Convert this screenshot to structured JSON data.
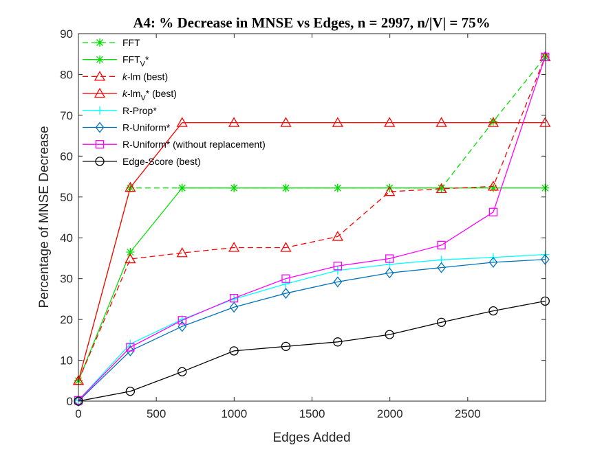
{
  "chart_data": {
    "type": "line",
    "title": "A4: % Decrease in MNSE vs Edges, n = 2997, n/|V| = 75%",
    "xlabel": "Edges Added",
    "ylabel": "Percentage of MNSE Decrease",
    "xlim": [
      0,
      3000
    ],
    "ylim": [
      0,
      90
    ],
    "xticks": [
      0,
      500,
      1000,
      1500,
      2000,
      2500
    ],
    "yticks": [
      0,
      10,
      20,
      30,
      40,
      50,
      60,
      70,
      80,
      90
    ],
    "grid": false,
    "legend_position": "top-left",
    "x": [
      0,
      333,
      666,
      999,
      1332,
      1665,
      1998,
      2331,
      2664,
      2997
    ],
    "series": [
      {
        "name": "FFT",
        "legend": {
          "main": "FFT",
          "sub": "",
          "tail": ""
        },
        "color": "#00e000",
        "dash": "dashed",
        "marker": "asterisk",
        "values": [
          5,
          52.2,
          52.2,
          52.2,
          52.2,
          52.2,
          52.2,
          52.2,
          68.5,
          84.3
        ]
      },
      {
        "name": "FFT_V*",
        "legend": {
          "main": "FFT",
          "sub": "V",
          "tail": "*"
        },
        "color": "#00e000",
        "dash": "solid",
        "marker": "asterisk",
        "values": [
          5,
          36.5,
          52.2,
          52.2,
          52.2,
          52.2,
          52.2,
          52.2,
          52.2,
          52.2
        ]
      },
      {
        "name": "k-lm (best)",
        "legend": {
          "italic": "k",
          "main": "-lm",
          "sub": "",
          "tail": " (best)"
        },
        "color": "#ff0000",
        "dash": "dashed",
        "marker": "triangle",
        "values": [
          5,
          34.8,
          36.3,
          37.6,
          37.6,
          40.3,
          51.3,
          52.0,
          52.6,
          84.3
        ]
      },
      {
        "name": "k-lm_V* (best)",
        "legend": {
          "italic": "k",
          "main": "-lm",
          "sub": "V",
          "tail": "* (best)"
        },
        "color": "#ff0000",
        "dash": "solid",
        "marker": "triangle",
        "values": [
          5,
          52.3,
          68.2,
          68.2,
          68.2,
          68.2,
          68.2,
          68.2,
          68.2,
          68.2
        ]
      },
      {
        "name": "R-Prop*",
        "legend": {
          "main": "R-Prop*",
          "sub": "",
          "tail": ""
        },
        "color": "#00ffff",
        "dash": "solid",
        "marker": "plus",
        "values": [
          0.2,
          14.0,
          20.0,
          25.0,
          28.7,
          32.0,
          33.5,
          34.6,
          35.2,
          35.9
        ]
      },
      {
        "name": "R-Uniform*",
        "legend": {
          "main": "R-Uniform*",
          "sub": "",
          "tail": ""
        },
        "color": "#0072bd",
        "dash": "solid",
        "marker": "diamond",
        "values": [
          0,
          12.3,
          18.3,
          23.0,
          26.4,
          29.2,
          31.4,
          32.7,
          34.0,
          34.7
        ]
      },
      {
        "name": "R-Uniform* (without replacement)",
        "legend": {
          "main": "R-Uniform* (without replacement)",
          "sub": "",
          "tail": ""
        },
        "color": "#ff00ff",
        "dash": "solid",
        "marker": "square",
        "values": [
          0.2,
          13.2,
          19.8,
          25.2,
          30.0,
          33.1,
          34.9,
          38.2,
          46.3,
          84.3
        ]
      },
      {
        "name": "Edge-Score (best)",
        "legend": {
          "main": "Edge-Score (best)",
          "sub": "",
          "tail": ""
        },
        "color": "#000000",
        "dash": "solid",
        "marker": "circle",
        "values": [
          0,
          2.4,
          7.2,
          12.3,
          13.4,
          14.5,
          16.3,
          19.3,
          22.1,
          24.5
        ]
      }
    ]
  }
}
